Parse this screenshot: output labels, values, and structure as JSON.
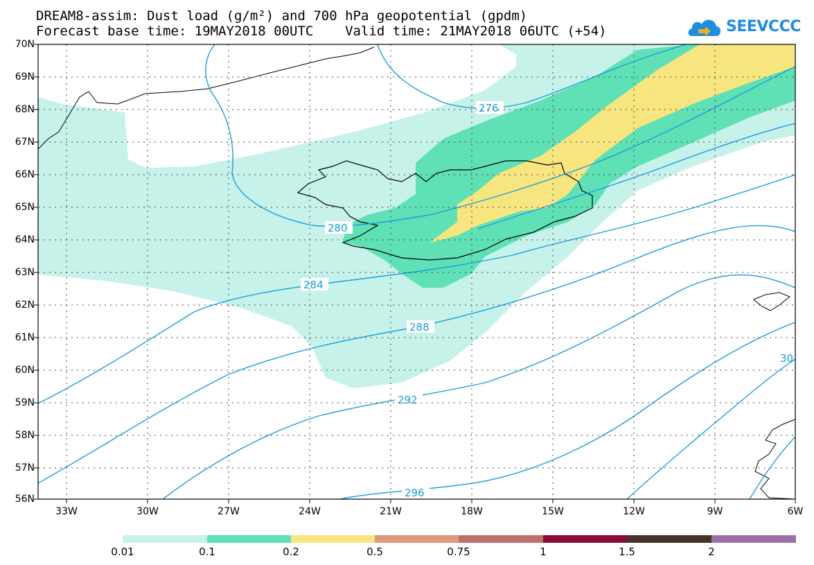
{
  "title": {
    "line1": "DREAM8-assim: Dust load (g/m²) and 700 hPa geopotential (gpdm)",
    "line2": "Forecast base time: 19MAY2018 00UTC    Valid time: 21MAY2018 06UTC (+54)"
  },
  "logo": {
    "text": "SEEVCCC",
    "icon": "cloud-arrow-icon",
    "color": "#1e8fe0"
  },
  "axes": {
    "latitudes": [
      "70N",
      "69N",
      "68N",
      "67N",
      "66N",
      "65N",
      "64N",
      "63N",
      "62N",
      "61N",
      "60N",
      "59N",
      "58N",
      "57N",
      "56N"
    ],
    "longitudes": [
      "33W",
      "30W",
      "27W",
      "24W",
      "21W",
      "18W",
      "15W",
      "12W",
      "9W",
      "6W"
    ],
    "grid": "dotted"
  },
  "contours": {
    "variable": "700 hPa geopotential (gpdm)",
    "color": "#1a9de0",
    "labels": [
      "276",
      "280",
      "284",
      "288",
      "292",
      "296",
      "30"
    ]
  },
  "colorbar": {
    "labels": [
      "0.01",
      "0.1",
      "0.2",
      "0.5",
      "0.75",
      "1",
      "1.5",
      "2"
    ],
    "colors": [
      "#c7f2ea",
      "#5fe0b5",
      "#f7e57f",
      "#e0977a",
      "#c0706a",
      "#8b0b3a",
      "#473328",
      "#9c6fa8"
    ]
  },
  "dust_colors": {
    "light": "#c7f2ea",
    "medium": "#5fe0b5",
    "high": "#f7e57f"
  }
}
